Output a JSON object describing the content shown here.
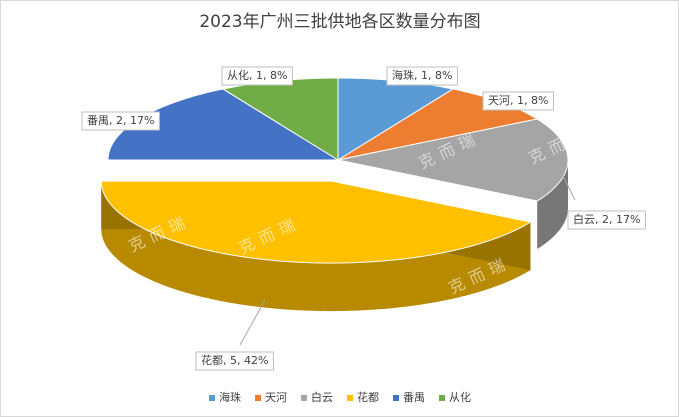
{
  "chart_data": {
    "type": "pie3d",
    "title": "2023年广州三批供地各区数量分布图",
    "categories": [
      "海珠",
      "天河",
      "白云",
      "花都",
      "番禺",
      "从化"
    ],
    "values": [
      1,
      1,
      2,
      5,
      2,
      1
    ],
    "value_labels": [
      "海珠, 1, 8%",
      "天河, 1, 8%",
      "白云, 2, 17%",
      "花都, 5, 42%",
      "番禺, 2, 17%",
      "从化, 1, 8%"
    ],
    "colors": [
      "#5b9bd5",
      "#ed7d31",
      "#a5a5a5",
      "#ffc000",
      "#4472c4",
      "#70ad47"
    ],
    "exploded": "花都",
    "legend": "bottom",
    "watermark": "克而瑞"
  }
}
